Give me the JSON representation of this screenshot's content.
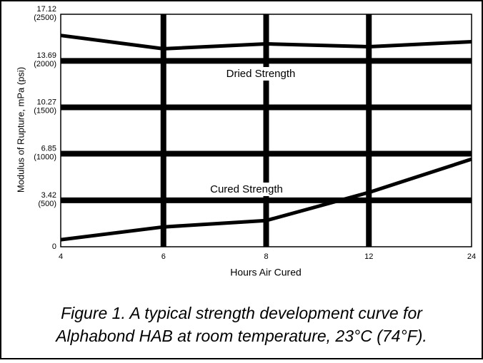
{
  "chart_data": {
    "type": "line",
    "categories": [
      "4",
      "6",
      "8",
      "12",
      "24"
    ],
    "series": [
      {
        "name": "Dried Strength",
        "color": "#000000",
        "values": [
          15.56,
          14.58,
          14.94,
          14.73,
          15.1
        ]
      },
      {
        "name": "Cured Strength",
        "color": "#000000",
        "values": [
          0.52,
          1.46,
          1.93,
          4.0,
          6.45
        ]
      }
    ],
    "ylim": [
      0,
      17.12
    ],
    "yticks": [
      0,
      3.42,
      6.85,
      10.27,
      13.69,
      17.12
    ],
    "ytick_psi_labels": [
      null,
      "(500)",
      "(1000)",
      "(1500)",
      "(2000)",
      "(2500)"
    ],
    "y_label": "Modulus of Rupture, mPa (psi)",
    "x_label": "Hours Air Cured",
    "grid": true,
    "caption": [
      "Figure 1. A typical strength development curve for",
      "Alphabond HAB at room temperature, 23°C (74°F)."
    ]
  }
}
